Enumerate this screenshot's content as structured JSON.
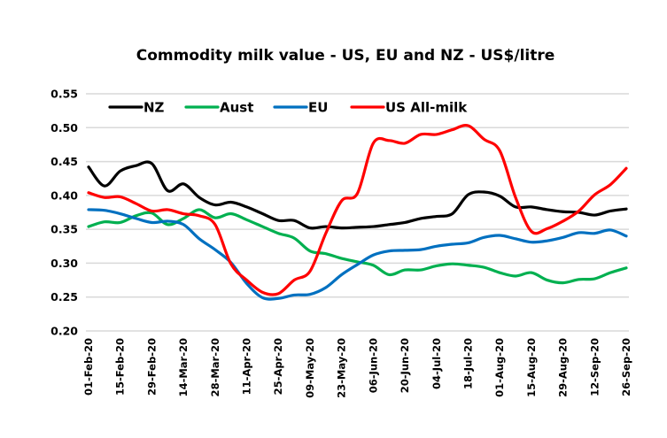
{
  "chart_data": {
    "type": "line",
    "title": "Commodity milk value - US, EU and NZ - US$/litre",
    "xlabel": "",
    "ylabel": "",
    "ylim": [
      0.2,
      0.55
    ],
    "yticks": [
      "0.20",
      "0.25",
      "0.30",
      "0.35",
      "0.40",
      "0.45",
      "0.50",
      "0.55"
    ],
    "grid": "horizontal",
    "legend_position": "top",
    "x_tick_labels": [
      "01-Feb-20",
      "15-Feb-20",
      "29-Feb-20",
      "14-Mar-20",
      "28-Mar-20",
      "11-Apr-20",
      "25-Apr-20",
      "09-May-20",
      "23-May-20",
      "06-Jun-20",
      "20-Jun-20",
      "04-Jul-20",
      "18-Jul-20",
      "01-Aug-20",
      "15-Aug-20",
      "29-Aug-20",
      "12-Sep-20",
      "26-Sep-20"
    ],
    "x": [
      "01-Feb-20",
      "08-Feb-20",
      "15-Feb-20",
      "22-Feb-20",
      "29-Feb-20",
      "07-Mar-20",
      "14-Mar-20",
      "21-Mar-20",
      "28-Mar-20",
      "04-Apr-20",
      "11-Apr-20",
      "18-Apr-20",
      "25-Apr-20",
      "02-May-20",
      "09-May-20",
      "16-May-20",
      "23-May-20",
      "30-May-20",
      "06-Jun-20",
      "13-Jun-20",
      "20-Jun-20",
      "27-Jun-20",
      "04-Jul-20",
      "11-Jul-20",
      "18-Jul-20",
      "25-Jul-20",
      "01-Aug-20",
      "08-Aug-20",
      "15-Aug-20",
      "22-Aug-20",
      "29-Aug-20",
      "05-Sep-20",
      "12-Sep-20",
      "19-Sep-20",
      "26-Sep-20"
    ],
    "series": [
      {
        "name": "NZ",
        "color": "#000000",
        "values": [
          0.442,
          0.414,
          0.436,
          0.444,
          0.447,
          0.407,
          0.417,
          0.397,
          0.386,
          0.39,
          0.383,
          0.373,
          0.363,
          0.363,
          0.352,
          0.354,
          0.352,
          0.353,
          0.354,
          0.357,
          0.36,
          0.366,
          0.369,
          0.373,
          0.401,
          0.405,
          0.399,
          0.383,
          0.383,
          0.379,
          0.376,
          0.375,
          0.371,
          0.377,
          0.38
        ]
      },
      {
        "name": "Aust",
        "color": "#00b050",
        "values": [
          0.354,
          0.361,
          0.36,
          0.37,
          0.374,
          0.357,
          0.366,
          0.379,
          0.367,
          0.373,
          0.364,
          0.354,
          0.344,
          0.337,
          0.318,
          0.314,
          0.307,
          0.302,
          0.297,
          0.283,
          0.29,
          0.29,
          0.296,
          0.299,
          0.297,
          0.294,
          0.286,
          0.281,
          0.286,
          0.275,
          0.271,
          0.276,
          0.277,
          0.286,
          0.293
        ]
      },
      {
        "name": "EU",
        "color": "#0070c0",
        "values": [
          0.379,
          0.378,
          0.373,
          0.366,
          0.36,
          0.362,
          0.357,
          0.336,
          0.32,
          0.301,
          0.27,
          0.249,
          0.248,
          0.253,
          0.254,
          0.264,
          0.283,
          0.298,
          0.312,
          0.318,
          0.319,
          0.32,
          0.325,
          0.328,
          0.33,
          0.338,
          0.341,
          0.336,
          0.331,
          0.333,
          0.338,
          0.345,
          0.344,
          0.349,
          0.34
        ]
      },
      {
        "name": "US All-milk",
        "color": "#ff0000",
        "values": [
          0.404,
          0.397,
          0.398,
          0.388,
          0.377,
          0.379,
          0.373,
          0.37,
          0.357,
          0.299,
          0.275,
          0.257,
          0.255,
          0.275,
          0.288,
          0.344,
          0.392,
          0.403,
          0.477,
          0.481,
          0.477,
          0.49,
          0.49,
          0.497,
          0.503,
          0.483,
          0.466,
          0.397,
          0.347,
          0.351,
          0.362,
          0.377,
          0.401,
          0.416,
          0.44
        ]
      }
    ]
  }
}
